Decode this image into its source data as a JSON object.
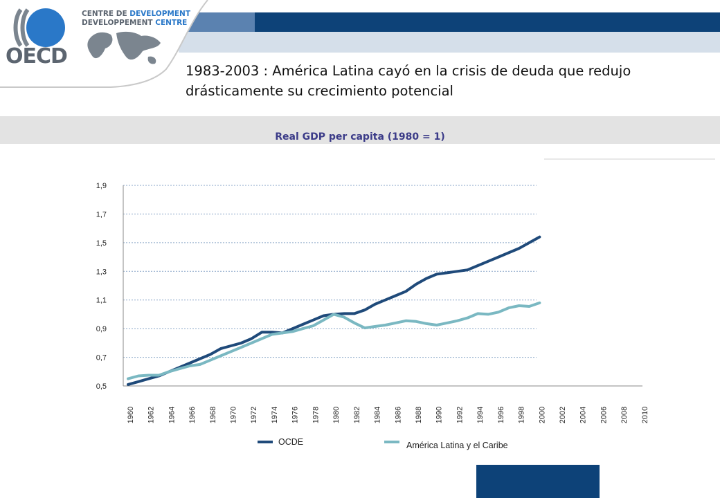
{
  "header": {
    "logo_text": "OECD",
    "centre_line1_a": "CENTRE DE",
    "centre_line1_b": "DEVELOPMENT",
    "centre_line2_a": "DEVELOPPEMENT",
    "centre_line2_b": "CENTRE",
    "colors": {
      "navy": "#0d4278",
      "steel": "#5b82b0",
      "pale": "#d5dfea",
      "gray_band": "#e3e3e3"
    }
  },
  "slide_title": "1983-2003 : América Latina cayó en la crisis de deuda que redujo drásticamente su crecimiento potencial",
  "chart_data": {
    "type": "line",
    "title": "Real GDP per capita (1980 = 1)",
    "xlabel": "",
    "ylabel": "",
    "xlim": [
      1960,
      2010
    ],
    "ylim": [
      0.5,
      1.9
    ],
    "y_ticks": [
      "0,5",
      "0,7",
      "0,9",
      "1,1",
      "1,3",
      "1,5",
      "1,7",
      "1,9"
    ],
    "x_ticks": [
      "1960",
      "1962",
      "1964",
      "1966",
      "1968",
      "1970",
      "1972",
      "1974",
      "1976",
      "1978",
      "1980",
      "1982",
      "1984",
      "1986",
      "1988",
      "1990",
      "1992",
      "1994",
      "1996",
      "1998",
      "2000",
      "2002",
      "2004",
      "2006",
      "2008",
      "2010"
    ],
    "grid": true,
    "legend_position": "bottom",
    "x": [
      1960,
      1961,
      1962,
      1963,
      1964,
      1965,
      1966,
      1967,
      1968,
      1969,
      1970,
      1971,
      1972,
      1973,
      1974,
      1975,
      1976,
      1977,
      1978,
      1979,
      1980,
      1981,
      1982,
      1983,
      1984,
      1985,
      1986,
      1987,
      1988,
      1989,
      1990,
      1991,
      1992,
      1993,
      1994,
      1995,
      1996,
      1997,
      1998,
      1999,
      2000
    ],
    "series": [
      {
        "name": "OCDE",
        "color": "#1f4a7a",
        "values": [
          0.51,
          0.53,
          0.55,
          0.57,
          0.6,
          0.63,
          0.66,
          0.69,
          0.72,
          0.76,
          0.78,
          0.8,
          0.83,
          0.875,
          0.875,
          0.87,
          0.9,
          0.93,
          0.96,
          0.99,
          1.0,
          1.005,
          1.005,
          1.03,
          1.07,
          1.1,
          1.13,
          1.16,
          1.21,
          1.25,
          1.28,
          1.29,
          1.3,
          1.31,
          1.34,
          1.37,
          1.4,
          1.43,
          1.46,
          1.5,
          1.54
        ]
      },
      {
        "name": "América Latina y el Caribe",
        "color": "#7ab8c2",
        "values": [
          0.55,
          0.57,
          0.575,
          0.575,
          0.6,
          0.62,
          0.64,
          0.65,
          0.68,
          0.71,
          0.74,
          0.77,
          0.8,
          0.83,
          0.86,
          0.87,
          0.88,
          0.9,
          0.92,
          0.96,
          1.0,
          0.98,
          0.94,
          0.905,
          0.915,
          0.925,
          0.94,
          0.955,
          0.95,
          0.935,
          0.925,
          0.94,
          0.955,
          0.975,
          1.005,
          1.0,
          1.015,
          1.045,
          1.06,
          1.055,
          1.08
        ]
      }
    ]
  }
}
